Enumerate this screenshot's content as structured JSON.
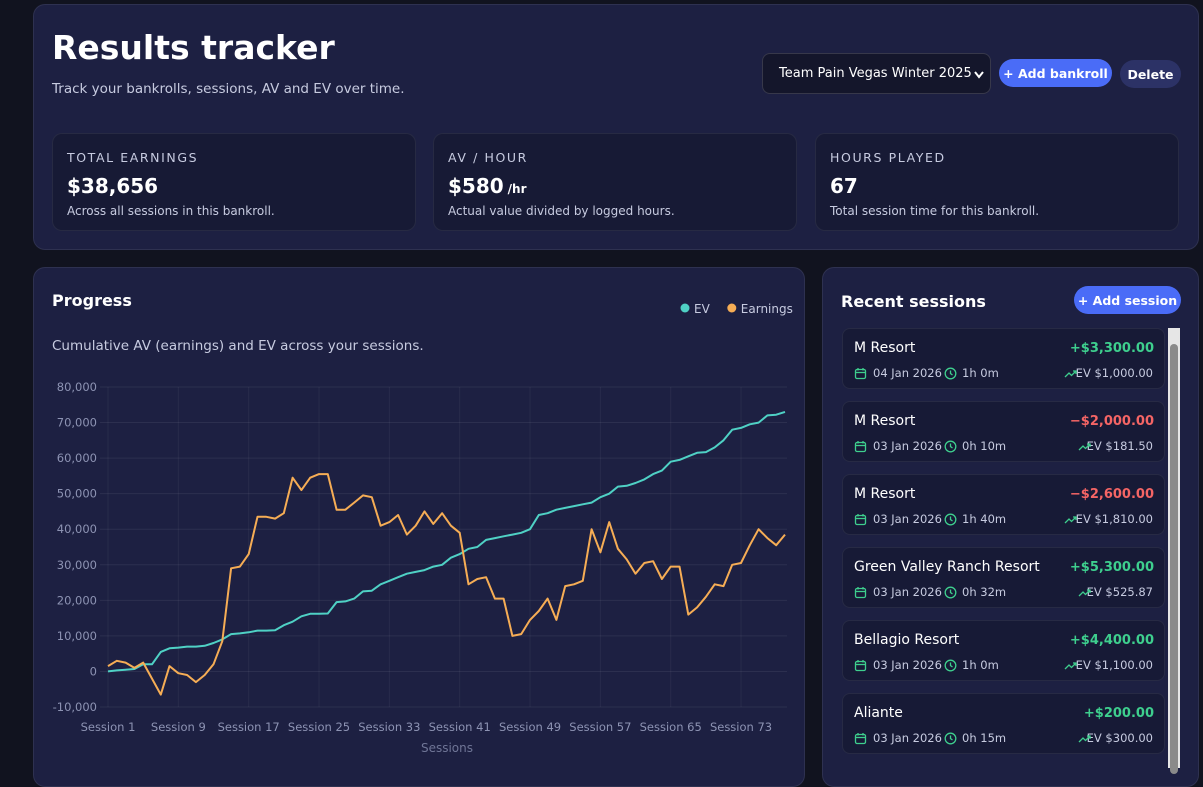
{
  "header": {
    "title": "Results tracker",
    "subtitle": "Track your bankrolls, sessions, AV and EV over time.",
    "bankroll_select": "Team Pain Vegas Winter 2025",
    "add_bankroll": "+ Add bankroll",
    "delete": "Delete"
  },
  "stats": [
    {
      "label": "TOTAL EARNINGS",
      "value": "$38,656",
      "note": "Across all sessions in this bankroll."
    },
    {
      "label": "AV / HOUR",
      "value": "$580",
      "unit": "/hr",
      "note": "Actual value divided by logged hours."
    },
    {
      "label": "HOURS PLAYED",
      "value": "67",
      "note": "Total session time for this bankroll."
    }
  ],
  "chart_data": {
    "type": "line",
    "title": "Progress",
    "subtitle": "Cumulative AV (earnings) and EV across your sessions.",
    "x_label": "Sessions",
    "categories": [
      "Session 1",
      null,
      null,
      null,
      null,
      null,
      null,
      null,
      "Session 9",
      null,
      null,
      null,
      null,
      null,
      null,
      null,
      "Session 17",
      null,
      null,
      null,
      null,
      null,
      null,
      null,
      "Session 25",
      null,
      null,
      null,
      null,
      null,
      null,
      null,
      "Session 33",
      null,
      null,
      null,
      null,
      null,
      null,
      null,
      "Session 41",
      null,
      null,
      null,
      null,
      null,
      null,
      null,
      "Session 49",
      null,
      null,
      null,
      null,
      null,
      null,
      null,
      "Session 57",
      null,
      null,
      null,
      null,
      null,
      null,
      null,
      "Session 65",
      null,
      null,
      null,
      null,
      null,
      null,
      null,
      "Session 73",
      null,
      null,
      null,
      null,
      null
    ],
    "series": [
      {
        "name": "EV",
        "color": "#4fd1c5",
        "values": [
          0,
          300,
          500,
          700,
          2000,
          2000,
          5500,
          6500,
          6700,
          7000,
          7000,
          7200,
          8000,
          9000,
          10500,
          10700,
          11000,
          11500,
          11500,
          11600,
          13000,
          14000,
          15500,
          16200,
          16200,
          16300,
          19500,
          19700,
          20500,
          22500,
          22700,
          24500,
          25500,
          26500,
          27500,
          28000,
          28500,
          29500,
          30000,
          32000,
          33000,
          34500,
          35000,
          37000,
          37500,
          38000,
          38500,
          39000,
          40000,
          44000,
          44500,
          45500,
          46000,
          46500,
          47000,
          47500,
          49000,
          50000,
          52000,
          52200,
          53000,
          54000,
          55500,
          56500,
          59000,
          59500,
          60500,
          61500,
          61700,
          63000,
          65000,
          68000,
          68500,
          69500,
          70000,
          72000,
          72200,
          73000
        ]
      },
      {
        "name": "Earnings",
        "color": "#f6ad55",
        "values": [
          1500,
          3000,
          2500,
          1000,
          2500,
          -2000,
          -6500,
          1500,
          -500,
          -1000,
          -3000,
          -1000,
          2000,
          8500,
          29000,
          29500,
          33000,
          43500,
          43500,
          43000,
          44500,
          54500,
          51000,
          54500,
          55500,
          55500,
          45500,
          45500,
          47500,
          49500,
          49000,
          41000,
          42000,
          44000,
          38500,
          41000,
          45000,
          41500,
          44500,
          41000,
          39000,
          24500,
          26000,
          26500,
          20500,
          20500,
          10000,
          10500,
          14500,
          17000,
          20500,
          14500,
          24000,
          24500,
          25500,
          40000,
          33500,
          42000,
          34500,
          31500,
          27500,
          30500,
          31000,
          26000,
          29500,
          29500,
          16000,
          18000,
          21000,
          24500,
          24000,
          30000,
          30500,
          35500,
          40000,
          37500,
          35500,
          38500
        ]
      }
    ],
    "ylim": [
      -10000,
      80000
    ],
    "yticks": [
      {
        "value": -10000,
        "label": "-10,000"
      },
      0,
      {
        "value": 10000,
        "label": "10,000"
      },
      {
        "value": 20000,
        "label": "20,000"
      },
      {
        "value": 30000,
        "label": "30,000"
      },
      {
        "value": 40000,
        "label": "40,000"
      },
      {
        "value": 50000,
        "label": "50,000"
      },
      {
        "value": 60000,
        "label": "60,000"
      },
      {
        "value": 70000,
        "label": "70,000"
      },
      {
        "value": 80000,
        "label": "80,000"
      }
    ],
    "grid": true,
    "legend": "top-right"
  },
  "recent": {
    "title": "Recent sessions",
    "add_session": "+ Add session",
    "sessions": [
      {
        "venue": "M Resort",
        "amount": "+$3,300.00",
        "date": "04 Jan 2026",
        "duration": "1h 0m",
        "ev": "EV $1,000.00"
      },
      {
        "venue": "M Resort",
        "amount": "−$2,000.00",
        "date": "03 Jan 2026",
        "duration": "0h 10m",
        "ev": "EV $181.50"
      },
      {
        "venue": "M Resort",
        "amount": "−$2,600.00",
        "date": "03 Jan 2026",
        "duration": "1h 40m",
        "ev": "EV $1,810.00"
      },
      {
        "venue": "Green Valley Ranch Resort",
        "amount": "+$5,300.00",
        "date": "03 Jan 2026",
        "duration": "0h 32m",
        "ev": "EV $525.87"
      },
      {
        "venue": "Bellagio Resort",
        "amount": "+$4,400.00",
        "date": "03 Jan 2026",
        "duration": "1h 0m",
        "ev": "EV $1,100.00"
      },
      {
        "venue": "Aliante",
        "amount": "+$200.00",
        "date": "03 Jan 2026",
        "duration": "0h 15m",
        "ev": "EV $300.00"
      }
    ]
  }
}
